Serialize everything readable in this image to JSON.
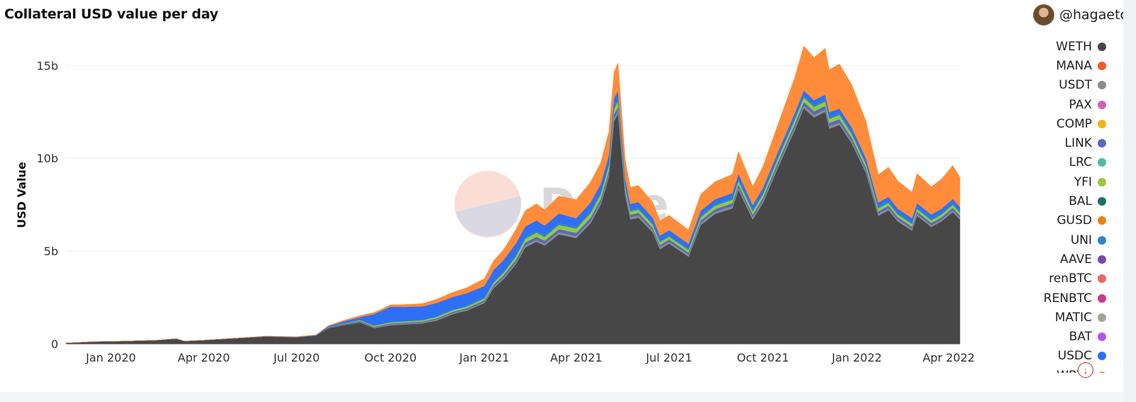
{
  "header": {
    "title": "Collateral USD value per day",
    "user": "@hagaetc"
  },
  "watermark": "Dune",
  "colors": {
    "background": "#ffffff",
    "gridline": "#ececec",
    "axis_text": "#333333"
  },
  "legend": {
    "items": [
      {
        "label": "WETH",
        "color": "#474747"
      },
      {
        "label": "MANA",
        "color": "#f15a2b"
      },
      {
        "label": "USDT",
        "color": "#8c8c8c"
      },
      {
        "label": "PAX",
        "color": "#d45fb5"
      },
      {
        "label": "COMP",
        "color": "#f3b511"
      },
      {
        "label": "LINK",
        "color": "#5768c4"
      },
      {
        "label": "LRC",
        "color": "#4dbfa0"
      },
      {
        "label": "YFI",
        "color": "#97c93d"
      },
      {
        "label": "BAL",
        "color": "#1d7060"
      },
      {
        "label": "GUSD",
        "color": "#ec8113"
      },
      {
        "label": "UNI",
        "color": "#2e86c8"
      },
      {
        "label": "AAVE",
        "color": "#7a4aa8"
      },
      {
        "label": "renBTC",
        "color": "#f0655f"
      },
      {
        "label": "RENBTC",
        "color": "#c83a8e"
      },
      {
        "label": "MATIC",
        "color": "#a4a49a"
      },
      {
        "label": "BAT",
        "color": "#b452f0"
      },
      {
        "label": "USDC",
        "color": "#2f6ff5"
      },
      {
        "label": "WBTC",
        "color": "#ff8c3a"
      }
    ]
  },
  "chart_data": {
    "type": "area",
    "stacked": true,
    "title": "Collateral USD value per day",
    "xlabel": "",
    "ylabel": "USD Value",
    "x_ticks": [
      "Jan 2020",
      "Apr 2020",
      "Jul 2020",
      "Oct 2020",
      "Jan 2021",
      "Apr 2021",
      "Jul 2021",
      "Oct 2021",
      "Jan 2022",
      "Apr 2022"
    ],
    "y_ticks": [
      "0",
      "5b",
      "10b",
      "15b"
    ],
    "ylim": [
      0,
      17
    ],
    "y_unit": "billion USD",
    "grid": true,
    "legend_position": "right",
    "x": [
      "2019-11-18",
      "2019-12-15",
      "2020-01-15",
      "2020-02-15",
      "2020-03-05",
      "2020-03-13",
      "2020-04-01",
      "2020-05-01",
      "2020-06-01",
      "2020-07-01",
      "2020-07-20",
      "2020-08-01",
      "2020-08-15",
      "2020-09-01",
      "2020-09-15",
      "2020-10-01",
      "2020-10-15",
      "2020-11-01",
      "2020-11-15",
      "2020-12-01",
      "2020-12-15",
      "2021-01-01",
      "2021-01-10",
      "2021-01-20",
      "2021-02-01",
      "2021-02-10",
      "2021-02-21",
      "2021-03-01",
      "2021-03-15",
      "2021-04-01",
      "2021-04-15",
      "2021-04-25",
      "2021-05-03",
      "2021-05-08",
      "2021-05-12",
      "2021-05-19",
      "2021-05-24",
      "2021-06-01",
      "2021-06-15",
      "2021-06-22",
      "2021-07-01",
      "2021-07-20",
      "2021-08-01",
      "2021-08-15",
      "2021-09-01",
      "2021-09-07",
      "2021-09-21",
      "2021-10-01",
      "2021-10-15",
      "2021-11-01",
      "2021-11-10",
      "2021-11-20",
      "2021-12-01",
      "2021-12-05",
      "2021-12-15",
      "2021-12-27",
      "2022-01-10",
      "2022-01-22",
      "2022-02-01",
      "2022-02-10",
      "2022-02-24",
      "2022-03-01",
      "2022-03-15",
      "2022-03-25",
      "2022-04-05",
      "2022-04-12"
    ],
    "series": [
      {
        "name": "WETH",
        "color": "#474747",
        "values": [
          0.05,
          0.12,
          0.15,
          0.2,
          0.28,
          0.15,
          0.2,
          0.3,
          0.4,
          0.35,
          0.45,
          0.85,
          1.0,
          1.15,
          0.85,
          1.0,
          1.05,
          1.1,
          1.25,
          1.6,
          1.8,
          2.2,
          3.0,
          3.5,
          4.3,
          5.2,
          5.5,
          5.3,
          5.9,
          5.7,
          6.5,
          7.5,
          9.0,
          12.0,
          12.4,
          8.0,
          6.7,
          6.8,
          6.0,
          5.1,
          5.4,
          4.7,
          6.4,
          7.0,
          7.3,
          8.3,
          6.7,
          7.6,
          9.4,
          11.5,
          12.7,
          12.2,
          12.5,
          11.6,
          11.8,
          10.8,
          9.2,
          6.9,
          7.2,
          6.6,
          6.1,
          6.9,
          6.3,
          6.6,
          7.1,
          6.7
        ]
      },
      {
        "name": "USDT",
        "color": "#8c8c8c",
        "values": [
          0,
          0,
          0,
          0,
          0,
          0,
          0,
          0,
          0,
          0,
          0,
          0.02,
          0.03,
          0.04,
          0.04,
          0.05,
          0.05,
          0.05,
          0.06,
          0.06,
          0.06,
          0.07,
          0.08,
          0.09,
          0.1,
          0.11,
          0.11,
          0.11,
          0.12,
          0.12,
          0.12,
          0.13,
          0.14,
          0.15,
          0.15,
          0.13,
          0.12,
          0.12,
          0.12,
          0.11,
          0.11,
          0.11,
          0.12,
          0.12,
          0.13,
          0.13,
          0.12,
          0.12,
          0.13,
          0.14,
          0.14,
          0.14,
          0.14,
          0.13,
          0.13,
          0.13,
          0.12,
          0.11,
          0.11,
          0.11,
          0.1,
          0.1,
          0.1,
          0.1,
          0.1,
          0.1
        ]
      },
      {
        "name": "LINK",
        "color": "#5768c4",
        "values": [
          0,
          0,
          0,
          0,
          0,
          0,
          0,
          0,
          0,
          0,
          0,
          0.02,
          0.04,
          0.05,
          0.04,
          0.05,
          0.05,
          0.05,
          0.06,
          0.07,
          0.07,
          0.08,
          0.1,
          0.12,
          0.14,
          0.15,
          0.16,
          0.15,
          0.16,
          0.16,
          0.17,
          0.18,
          0.2,
          0.22,
          0.22,
          0.15,
          0.14,
          0.14,
          0.13,
          0.12,
          0.12,
          0.11,
          0.13,
          0.14,
          0.15,
          0.16,
          0.14,
          0.15,
          0.17,
          0.19,
          0.2,
          0.19,
          0.19,
          0.18,
          0.18,
          0.17,
          0.15,
          0.13,
          0.13,
          0.12,
          0.12,
          0.12,
          0.12,
          0.12,
          0.13,
          0.12
        ]
      },
      {
        "name": "YFI",
        "color": "#97c93d",
        "values": [
          0,
          0,
          0,
          0,
          0,
          0,
          0,
          0,
          0,
          0,
          0,
          0.01,
          0.03,
          0.05,
          0.05,
          0.06,
          0.06,
          0.07,
          0.08,
          0.09,
          0.09,
          0.1,
          0.12,
          0.14,
          0.18,
          0.2,
          0.22,
          0.21,
          0.23,
          0.23,
          0.25,
          0.26,
          0.28,
          0.3,
          0.3,
          0.2,
          0.18,
          0.18,
          0.17,
          0.15,
          0.15,
          0.14,
          0.17,
          0.18,
          0.19,
          0.2,
          0.18,
          0.19,
          0.21,
          0.23,
          0.24,
          0.23,
          0.23,
          0.22,
          0.22,
          0.21,
          0.19,
          0.16,
          0.16,
          0.15,
          0.14,
          0.15,
          0.14,
          0.15,
          0.16,
          0.15
        ]
      },
      {
        "name": "UNI",
        "color": "#2e86c8",
        "values": [
          0,
          0,
          0,
          0,
          0,
          0,
          0,
          0,
          0,
          0,
          0,
          0,
          0,
          0,
          0.03,
          0.04,
          0.04,
          0.05,
          0.05,
          0.06,
          0.06,
          0.07,
          0.08,
          0.09,
          0.1,
          0.11,
          0.11,
          0.1,
          0.11,
          0.11,
          0.12,
          0.13,
          0.14,
          0.15,
          0.15,
          0.11,
          0.1,
          0.1,
          0.09,
          0.09,
          0.09,
          0.08,
          0.1,
          0.1,
          0.11,
          0.12,
          0.1,
          0.11,
          0.12,
          0.13,
          0.13,
          0.13,
          0.13,
          0.12,
          0.12,
          0.12,
          0.11,
          0.1,
          0.1,
          0.09,
          0.09,
          0.09,
          0.09,
          0.09,
          0.1,
          0.09
        ]
      },
      {
        "name": "USDC",
        "color": "#2f6ff5",
        "values": [
          0,
          0,
          0,
          0,
          0,
          0,
          0,
          0,
          0.01,
          0.02,
          0.02,
          0.05,
          0.1,
          0.15,
          0.6,
          0.8,
          0.75,
          0.7,
          0.7,
          0.65,
          0.65,
          0.6,
          0.6,
          0.6,
          0.6,
          0.55,
          0.55,
          0.5,
          0.5,
          0.45,
          0.45,
          0.42,
          0.42,
          0.42,
          0.42,
          0.35,
          0.3,
          0.3,
          0.28,
          0.26,
          0.26,
          0.25,
          0.25,
          0.25,
          0.25,
          0.25,
          0.24,
          0.24,
          0.24,
          0.24,
          0.24,
          0.24,
          0.24,
          0.23,
          0.23,
          0.23,
          0.22,
          0.22,
          0.22,
          0.22,
          0.22,
          0.22,
          0.22,
          0.22,
          0.22,
          0.22
        ]
      },
      {
        "name": "WBTC",
        "color": "#ff8c3a",
        "values": [
          0,
          0,
          0,
          0,
          0,
          0,
          0,
          0,
          0.01,
          0.02,
          0.02,
          0.03,
          0.05,
          0.08,
          0.08,
          0.1,
          0.12,
          0.15,
          0.2,
          0.25,
          0.3,
          0.4,
          0.5,
          0.55,
          0.75,
          0.85,
          0.9,
          0.85,
          0.95,
          1.0,
          1.1,
          1.15,
          1.25,
          1.4,
          1.5,
          1.0,
          0.9,
          0.9,
          0.85,
          0.8,
          0.8,
          0.75,
          0.9,
          0.95,
          1.0,
          1.2,
          1.0,
          1.15,
          1.45,
          1.9,
          2.4,
          2.3,
          2.5,
          2.3,
          2.4,
          2.3,
          2.0,
          1.5,
          1.6,
          1.5,
          1.4,
          1.6,
          1.5,
          1.6,
          1.8,
          1.6
        ]
      }
    ]
  }
}
